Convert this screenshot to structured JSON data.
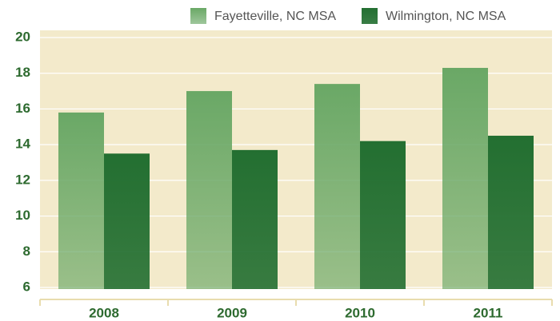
{
  "chart_data": {
    "type": "bar",
    "categories": [
      "2008",
      "2009",
      "2010",
      "2011"
    ],
    "series": [
      {
        "name": "Fayetteville, NC MSA",
        "color": "#6aa866",
        "values": [
          15.8,
          17.0,
          17.4,
          18.3
        ]
      },
      {
        "name": "Wilmington, NC MSA",
        "color": "#236f31",
        "values": [
          13.5,
          13.7,
          14.2,
          14.5
        ]
      }
    ],
    "ylim": [
      6,
      20
    ],
    "yticks": [
      6,
      8,
      10,
      12,
      14,
      16,
      18,
      20
    ],
    "grid": true,
    "legend": "top"
  }
}
